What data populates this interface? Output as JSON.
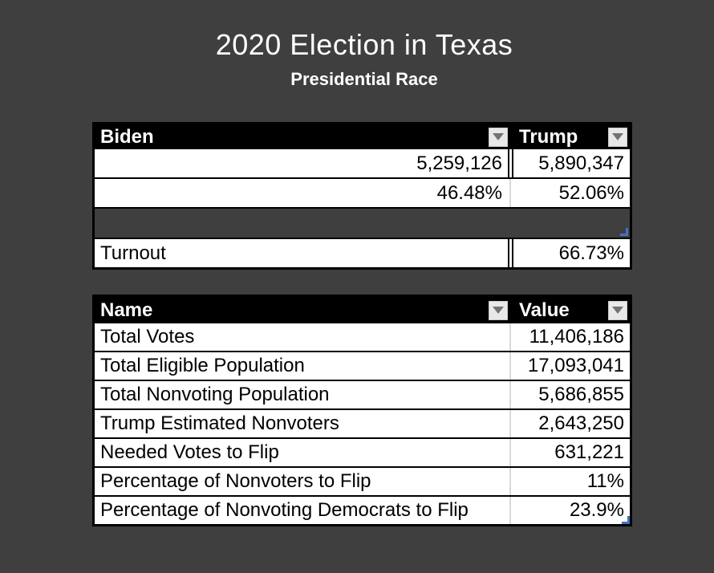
{
  "app": {
    "background_color": "#3f3f3f"
  },
  "header": {
    "title": "2020 Election in Texas",
    "subtitle": "Presidential Race"
  },
  "colors": {
    "table_header_bg": "#000000",
    "table_header_text": "#ffffff",
    "cell_bg": "#ffffff",
    "cell_text": "#000000",
    "grid_divider": "#d9d9d9",
    "cell_border": "#000000",
    "filter_button_bg": "#e8e8e8",
    "filter_arrow": "#737373",
    "resize_handle": "#4472c4"
  },
  "results_table": {
    "columns": [
      {
        "label": "Biden"
      },
      {
        "label": "Trump"
      }
    ],
    "rows": [
      {
        "biden": "5,259,126",
        "trump": "5,890,347"
      },
      {
        "biden": "46.48%",
        "trump": "52.06%"
      }
    ],
    "turnout_row": {
      "label": "Turnout",
      "value": "66.73%"
    }
  },
  "stats_table": {
    "columns": [
      {
        "label": "Name"
      },
      {
        "label": "Value"
      }
    ],
    "rows": [
      {
        "name": "Total Votes",
        "value": "11,406,186"
      },
      {
        "name": "Total Eligible Population",
        "value": "17,093,041"
      },
      {
        "name": "Total Nonvoting Population",
        "value": "5,686,855"
      },
      {
        "name": "Trump Estimated Nonvoters",
        "value": "2,643,250"
      },
      {
        "name": "Needed Votes to Flip",
        "value": "631,221"
      },
      {
        "name": "Percentage of Nonvoters to Flip",
        "value": "11%"
      },
      {
        "name": "Percentage of Nonvoting Democrats to Flip",
        "value": "23.9%"
      }
    ]
  }
}
